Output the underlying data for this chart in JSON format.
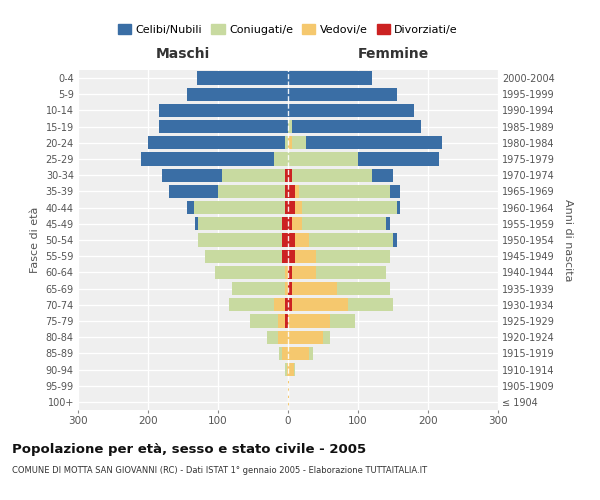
{
  "age_groups": [
    "100+",
    "95-99",
    "90-94",
    "85-89",
    "80-84",
    "75-79",
    "70-74",
    "65-69",
    "60-64",
    "55-59",
    "50-54",
    "45-49",
    "40-44",
    "35-39",
    "30-34",
    "25-29",
    "20-24",
    "15-19",
    "10-14",
    "5-9",
    "0-4"
  ],
  "birth_years": [
    "≤ 1904",
    "1905-1909",
    "1910-1914",
    "1915-1919",
    "1920-1924",
    "1925-1929",
    "1930-1934",
    "1935-1939",
    "1940-1944",
    "1945-1949",
    "1950-1954",
    "1955-1959",
    "1960-1964",
    "1965-1969",
    "1970-1974",
    "1975-1979",
    "1980-1984",
    "1985-1989",
    "1990-1994",
    "1995-1999",
    "2000-2004"
  ],
  "male_celibe": [
    0,
    0,
    0,
    0,
    0,
    0,
    0,
    0,
    0,
    0,
    0,
    5,
    10,
    70,
    85,
    190,
    195,
    185,
    185,
    145,
    130
  ],
  "male_coniugato": [
    0,
    0,
    2,
    5,
    15,
    40,
    65,
    75,
    100,
    110,
    120,
    120,
    130,
    95,
    90,
    20,
    5,
    0,
    0,
    0,
    0
  ],
  "male_vedovo": [
    0,
    0,
    2,
    8,
    15,
    10,
    15,
    5,
    5,
    0,
    0,
    0,
    0,
    0,
    0,
    0,
    0,
    0,
    0,
    0,
    0
  ],
  "male_divorziato": [
    0,
    0,
    0,
    0,
    0,
    5,
    5,
    0,
    0,
    8,
    8,
    8,
    5,
    5,
    5,
    0,
    0,
    0,
    0,
    0,
    0
  ],
  "female_nubile": [
    0,
    0,
    0,
    0,
    0,
    0,
    0,
    0,
    0,
    0,
    5,
    5,
    5,
    15,
    30,
    115,
    195,
    185,
    180,
    155,
    120
  ],
  "female_coniugata": [
    0,
    0,
    2,
    5,
    10,
    35,
    65,
    75,
    100,
    105,
    120,
    120,
    135,
    130,
    115,
    100,
    20,
    5,
    0,
    0,
    0
  ],
  "female_vedova": [
    2,
    2,
    8,
    30,
    50,
    60,
    80,
    65,
    35,
    30,
    20,
    15,
    10,
    5,
    0,
    0,
    5,
    0,
    0,
    0,
    0
  ],
  "female_divorziata": [
    0,
    0,
    0,
    0,
    0,
    0,
    5,
    5,
    5,
    10,
    10,
    5,
    10,
    10,
    5,
    0,
    0,
    0,
    0,
    0,
    0
  ],
  "color_celibe": "#3A6EA5",
  "color_coniugato": "#C8DAA0",
  "color_vedovo": "#F5C86E",
  "color_divorziato": "#CC2222",
  "title": "Popolazione per età, sesso e stato civile - 2005",
  "subtitle": "COMUNE DI MOTTA SAN GIOVANNI (RC) - Dati ISTAT 1° gennaio 2005 - Elaborazione TUTTAITALIA.IT",
  "label_maschi": "Maschi",
  "label_femmine": "Femmine",
  "label_fasce": "Fasce di età",
  "label_anni": "Anni di nascita",
  "legend_celibi": "Celibi/Nubili",
  "legend_coniugati": "Coniugati/e",
  "legend_vedovi": "Vedovi/e",
  "legend_divorziati": "Divorziati/e",
  "xlim": 300,
  "bg_color": "#FFFFFF",
  "plot_bg": "#EFEFEF"
}
